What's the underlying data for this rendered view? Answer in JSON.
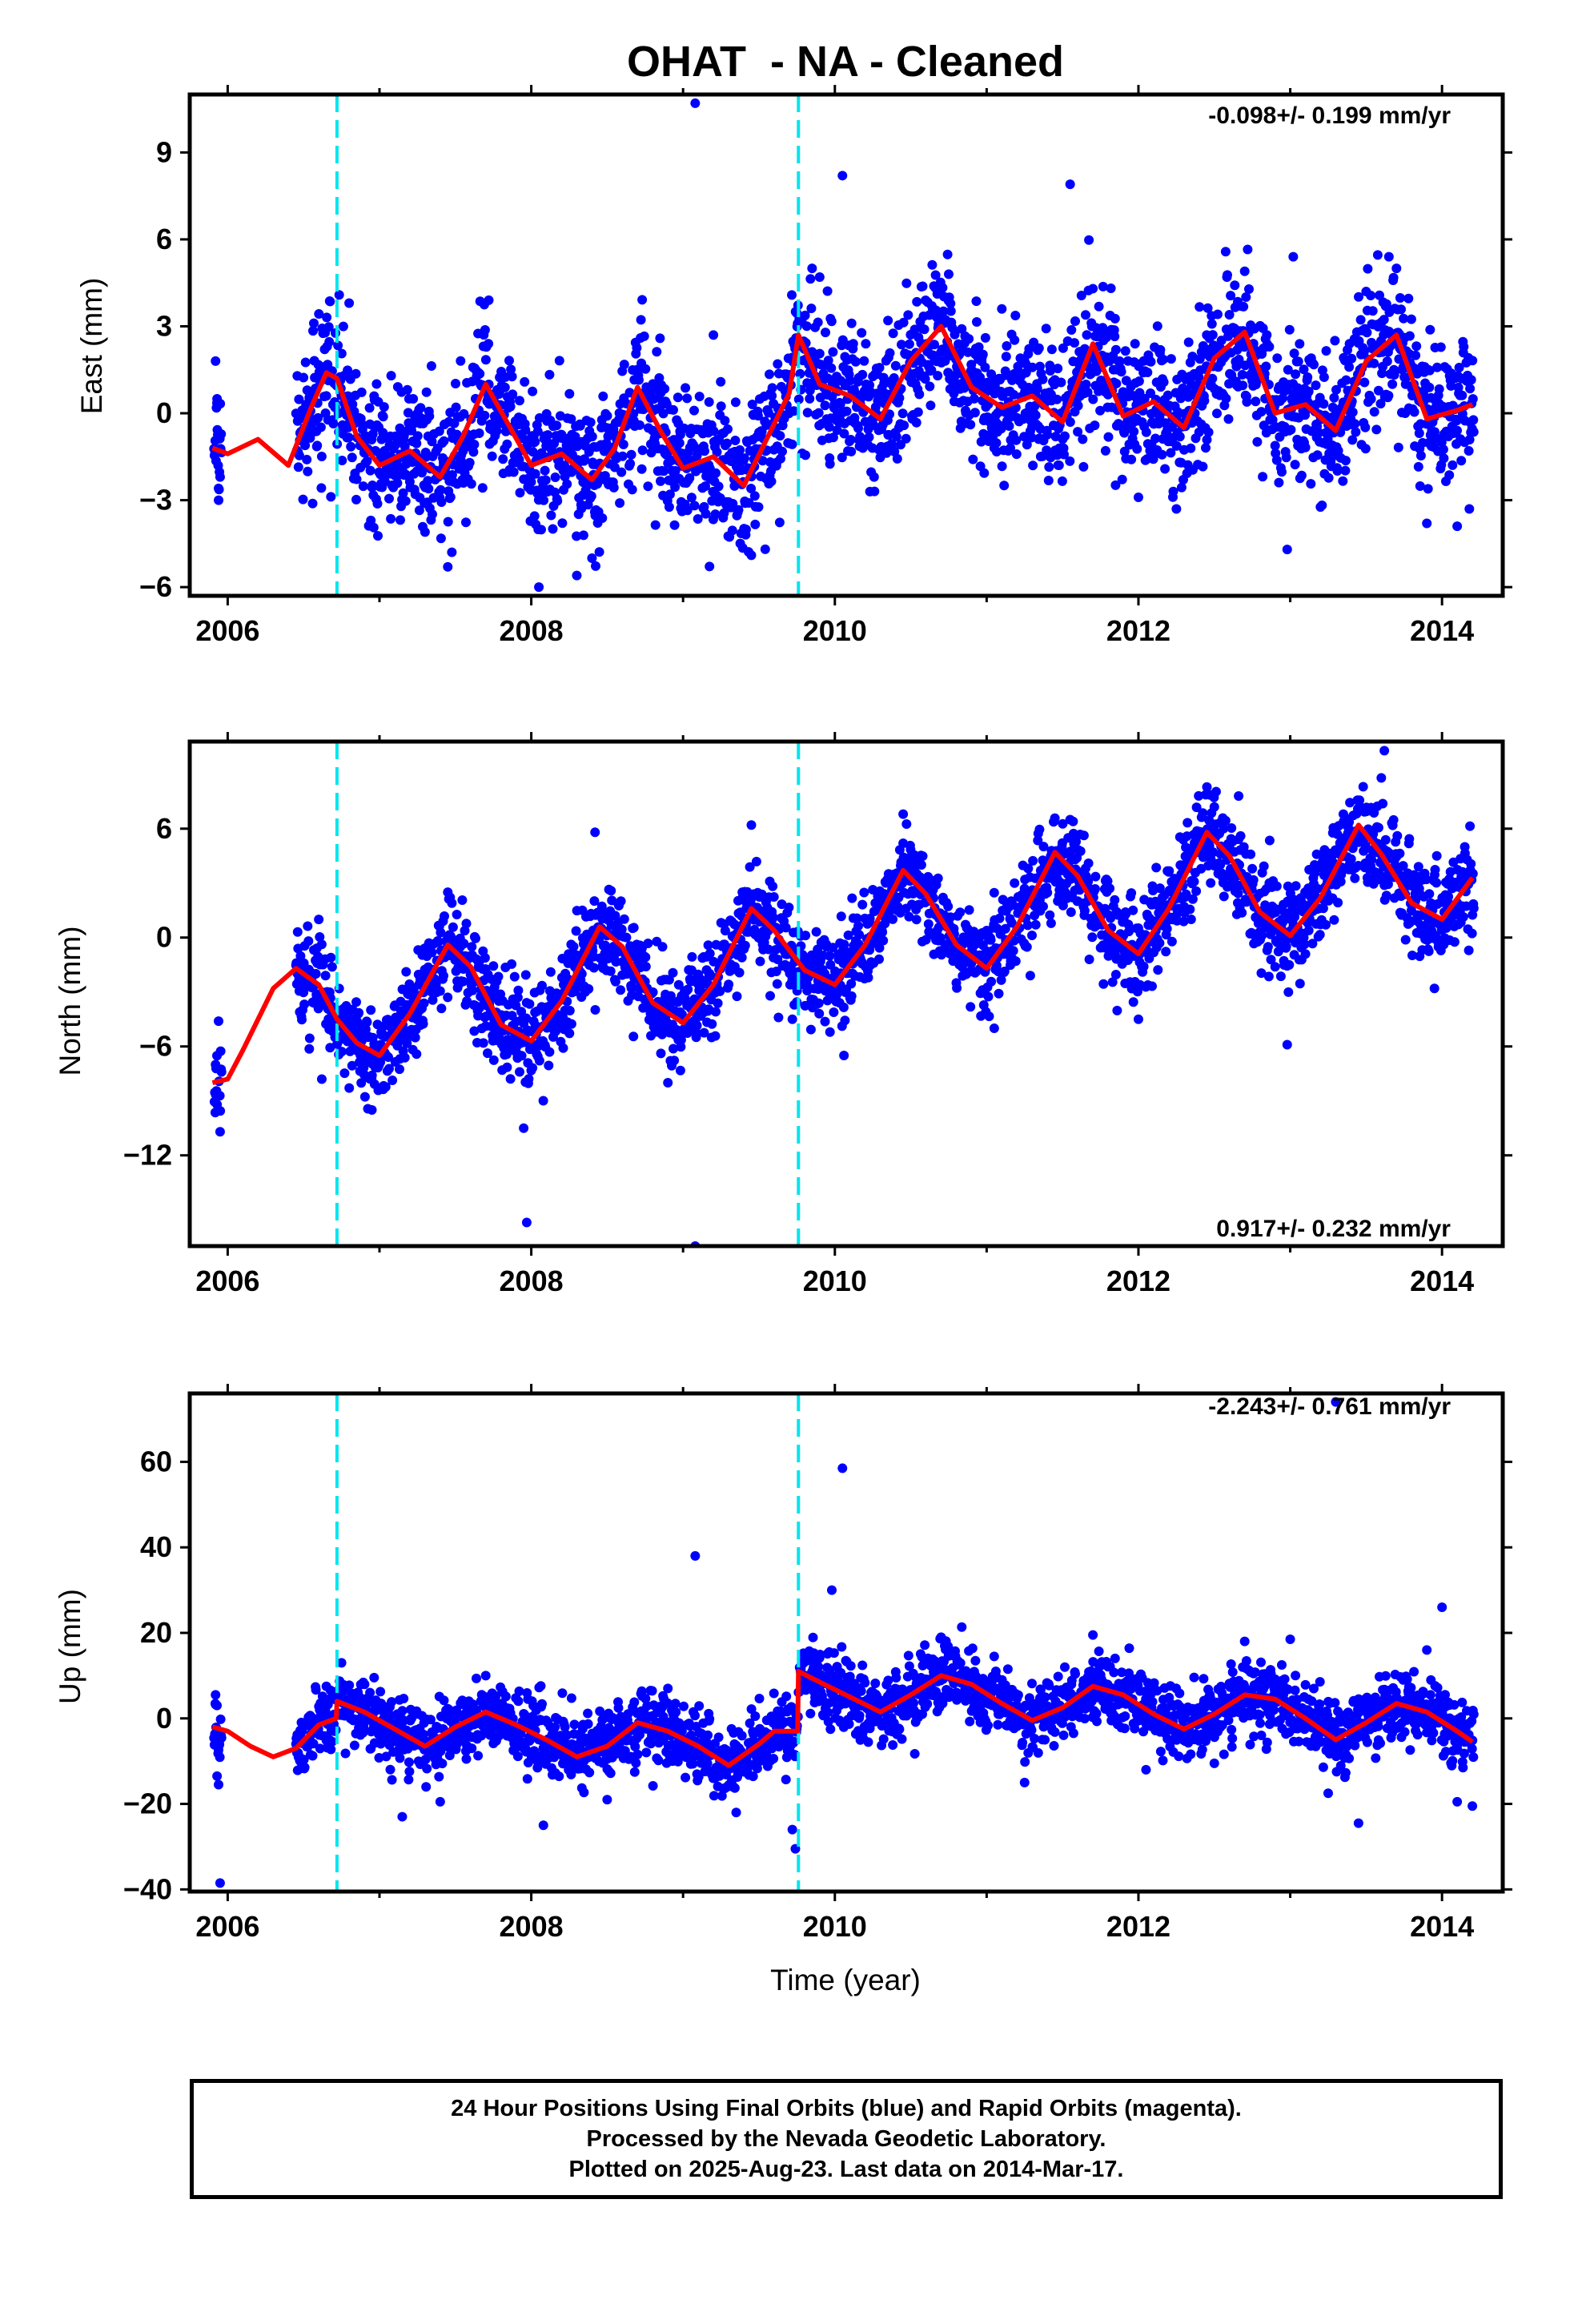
{
  "chart_data": {
    "title": "OHAT  - NA - Cleaned",
    "xlabel": "Time (year)",
    "type": "scatter",
    "xlim": [
      2005.75,
      2014.4
    ],
    "x_ticks": [
      "2006",
      "2008",
      "2010",
      "2012",
      "2014"
    ],
    "equipment_changes": [
      2006.72,
      2009.76
    ],
    "colors": {
      "points": "#0000ff",
      "model": "#ff0000",
      "equipment_changes": "#00e5ee"
    },
    "panels": [
      {
        "component": "east",
        "ylabel": "East (mm)",
        "ylim": [
          -6.3,
          11.0
        ],
        "y_ticks": [
          "9",
          "6",
          "3",
          "0",
          "−3",
          "−6"
        ],
        "rate_label": "-0.098+/- 0.199 mm/yr",
        "rate_position": "top-right",
        "model_curve": {
          "x": [
            2005.9,
            2006.0,
            2006.2,
            2006.4,
            2006.55,
            2006.65,
            2006.72,
            2006.85,
            2007.0,
            2007.2,
            2007.4,
            2007.55,
            2007.7,
            2007.85,
            2008.0,
            2008.2,
            2008.4,
            2008.55,
            2008.7,
            2008.85,
            2009.0,
            2009.2,
            2009.4,
            2009.55,
            2009.7,
            2009.76,
            2009.9,
            2010.1,
            2010.3,
            2010.5,
            2010.7,
            2010.9,
            2011.1,
            2011.3,
            2011.5,
            2011.7,
            2011.9,
            2012.1,
            2012.3,
            2012.5,
            2012.7,
            2012.9,
            2013.1,
            2013.3,
            2013.5,
            2013.7,
            2013.9,
            2014.1,
            2014.2
          ],
          "y": [
            -1.2,
            -1.4,
            -0.9,
            -1.8,
            0.2,
            1.4,
            1.2,
            -0.8,
            -1.8,
            -1.3,
            -2.2,
            -0.8,
            1.0,
            -0.4,
            -1.8,
            -1.4,
            -2.3,
            -1.2,
            0.9,
            -0.6,
            -1.9,
            -1.5,
            -2.5,
            -0.9,
            0.7,
            2.7,
            1.0,
            0.6,
            -0.2,
            1.8,
            3.0,
            0.9,
            0.2,
            0.6,
            -0.3,
            2.4,
            -0.1,
            0.4,
            -0.5,
            1.9,
            2.8,
            0.0,
            0.3,
            -0.6,
            1.8,
            2.7,
            -0.2,
            0.1,
            0.3
          ]
        },
        "points": [
          [
            2005.92,
            1.8
          ],
          [
            2005.94,
            -3.0
          ],
          [
            2005.95,
            -2.2
          ],
          [
            2005.93,
            0.5
          ],
          [
            2006.62,
            1.6
          ],
          [
            2006.8,
            3.8
          ],
          [
            2007.3,
            -4.1
          ],
          [
            2007.45,
            -5.3
          ],
          [
            2007.72,
            3.9
          ],
          [
            2008.05,
            -6.0
          ],
          [
            2008.3,
            -5.6
          ],
          [
            2008.4,
            -5.0
          ],
          [
            2008.72,
            2.6
          ],
          [
            2009.08,
            10.7
          ],
          [
            2009.2,
            2.7
          ],
          [
            2009.45,
            -4.9
          ],
          [
            2009.85,
            5.0
          ],
          [
            2009.9,
            4.7
          ],
          [
            2010.05,
            8.2
          ],
          [
            2010.35,
            3.2
          ],
          [
            2010.75,
            4.8
          ],
          [
            2011.1,
            3.6
          ],
          [
            2011.55,
            7.9
          ],
          [
            2011.7,
            4.3
          ],
          [
            2012.0,
            -2.9
          ],
          [
            2012.25,
            -3.3
          ],
          [
            2012.45,
            2.7
          ],
          [
            2012.7,
            4.9
          ],
          [
            2012.98,
            -4.7
          ],
          [
            2013.02,
            5.4
          ],
          [
            2013.5,
            4.2
          ],
          [
            2013.65,
            5.4
          ],
          [
            2013.7,
            5.0
          ],
          [
            2013.9,
            -3.8
          ],
          [
            2014.1,
            -3.9
          ],
          [
            2014.18,
            -3.3
          ]
        ]
      },
      {
        "component": "north",
        "ylabel": "North (mm)",
        "ylim": [
          -17.0,
          10.8
        ],
        "y_ticks": [
          "6",
          "0",
          "−6",
          "−12"
        ],
        "rate_label": "0.917+/- 0.232 mm/yr",
        "rate_position": "bottom-right",
        "model_curve": {
          "x": [
            2005.9,
            2006.0,
            2006.1,
            2006.3,
            2006.45,
            2006.6,
            2006.72,
            2006.85,
            2007.0,
            2007.2,
            2007.45,
            2007.6,
            2007.8,
            2008.0,
            2008.2,
            2008.45,
            2008.6,
            2008.8,
            2009.0,
            2009.2,
            2009.45,
            2009.6,
            2009.8,
            2010.0,
            2010.2,
            2010.45,
            2010.6,
            2010.8,
            2011.0,
            2011.2,
            2011.45,
            2011.6,
            2011.8,
            2012.0,
            2012.2,
            2012.45,
            2012.6,
            2012.8,
            2013.0,
            2013.2,
            2013.45,
            2013.6,
            2013.8,
            2014.0,
            2014.2
          ],
          "y": [
            -8.0,
            -7.8,
            -6.2,
            -2.8,
            -1.7,
            -2.6,
            -4.5,
            -5.8,
            -6.5,
            -4.2,
            -0.4,
            -1.6,
            -4.8,
            -5.7,
            -3.5,
            0.6,
            -0.5,
            -3.6,
            -4.7,
            -2.6,
            1.6,
            0.4,
            -1.8,
            -2.6,
            -0.4,
            3.7,
            2.4,
            -0.4,
            -1.7,
            0.6,
            4.7,
            3.4,
            0.4,
            -0.9,
            1.6,
            5.8,
            4.5,
            1.4,
            0.1,
            2.2,
            6.2,
            4.6,
            1.9,
            1.0,
            3.3
          ]
        },
        "points": [
          [
            2005.92,
            -7.0
          ],
          [
            2005.93,
            -9.2
          ],
          [
            2005.95,
            -10.7
          ],
          [
            2006.6,
            1.0
          ],
          [
            2006.62,
            -7.8
          ],
          [
            2006.95,
            -9.5
          ],
          [
            2007.45,
            2.5
          ],
          [
            2007.95,
            -10.5
          ],
          [
            2007.97,
            -15.7
          ],
          [
            2008.42,
            5.8
          ],
          [
            2008.9,
            -8.0
          ],
          [
            2009.08,
            -17.0
          ],
          [
            2009.45,
            6.2
          ],
          [
            2009.72,
            -4.5
          ],
          [
            2010.06,
            -6.5
          ],
          [
            2010.45,
            6.8
          ],
          [
            2011.05,
            -5.0
          ],
          [
            2011.55,
            6.5
          ],
          [
            2012.0,
            -4.5
          ],
          [
            2012.5,
            7.2
          ],
          [
            2012.66,
            7.8
          ],
          [
            2012.98,
            -5.9
          ],
          [
            2013.35,
            6.8
          ],
          [
            2013.62,
            10.3
          ],
          [
            2013.6,
            8.8
          ],
          [
            2013.95,
            -2.8
          ],
          [
            2014.15,
            5.0
          ]
        ]
      },
      {
        "component": "up",
        "ylabel": "Up (mm)",
        "ylim": [
          -40.5,
          76.0
        ],
        "y_ticks": [
          "60",
          "40",
          "20",
          "0",
          "−20",
          "−40"
        ],
        "rate_label": "-2.243+/- 0.761 mm/yr",
        "rate_position": "top-right",
        "model_curve": {
          "x": [
            2005.9,
            2006.0,
            2006.15,
            2006.3,
            2006.45,
            2006.6,
            2006.715,
            2006.72,
            2006.9,
            2007.1,
            2007.3,
            2007.5,
            2007.7,
            2007.9,
            2008.1,
            2008.3,
            2008.5,
            2008.7,
            2008.9,
            2009.1,
            2009.3,
            2009.5,
            2009.6,
            2009.755,
            2009.76,
            2009.9,
            2010.1,
            2010.3,
            2010.5,
            2010.7,
            2010.9,
            2011.1,
            2011.3,
            2011.5,
            2011.7,
            2011.9,
            2012.1,
            2012.3,
            2012.5,
            2012.7,
            2012.9,
            2013.1,
            2013.3,
            2013.5,
            2013.7,
            2013.9,
            2014.1,
            2014.2
          ],
          "y": [
            -2.0,
            -3.0,
            -6.5,
            -9.0,
            -7.0,
            -1.5,
            0.0,
            4.0,
            1.5,
            -2.5,
            -6.5,
            -2.0,
            1.5,
            -1.5,
            -5.0,
            -9.0,
            -6.5,
            -1.0,
            -3.0,
            -6.5,
            -11.0,
            -6.0,
            -3.0,
            -3.0,
            11.0,
            8.5,
            5.0,
            1.5,
            5.5,
            10.0,
            8.0,
            3.5,
            -0.5,
            2.5,
            7.5,
            5.5,
            1.0,
            -2.5,
            1.0,
            5.5,
            4.5,
            0.0,
            -5.0,
            -1.0,
            3.5,
            1.5,
            -3.0,
            -5.5
          ]
        },
        "points": [
          [
            2005.92,
            5.5
          ],
          [
            2005.93,
            -13.5
          ],
          [
            2005.94,
            -15.5
          ],
          [
            2005.95,
            -38.5
          ],
          [
            2006.65,
            7.5
          ],
          [
            2006.75,
            13.0
          ],
          [
            2007.15,
            -23.0
          ],
          [
            2007.4,
            -19.5
          ],
          [
            2007.7,
            10.0
          ],
          [
            2008.08,
            -25.0
          ],
          [
            2008.5,
            -19.0
          ],
          [
            2008.9,
            7.0
          ],
          [
            2009.08,
            38.0
          ],
          [
            2009.35,
            -22.0
          ],
          [
            2009.72,
            -26.0
          ],
          [
            2009.74,
            -30.5
          ],
          [
            2009.98,
            30.0
          ],
          [
            2010.05,
            58.5
          ],
          [
            2010.7,
            19.0
          ],
          [
            2011.25,
            -15.0
          ],
          [
            2011.7,
            19.5
          ],
          [
            2012.05,
            -12.0
          ],
          [
            2012.5,
            -10.5
          ],
          [
            2012.7,
            18.0
          ],
          [
            2013.0,
            18.5
          ],
          [
            2013.25,
            -17.5
          ],
          [
            2013.3,
            74.0
          ],
          [
            2013.45,
            -24.5
          ],
          [
            2013.9,
            16.0
          ],
          [
            2014.0,
            26.0
          ],
          [
            2014.1,
            -19.5
          ],
          [
            2014.2,
            -20.5
          ]
        ]
      }
    ]
  },
  "footer": {
    "line1": "24 Hour Positions Using Final Orbits (blue) and Rapid Orbits (magenta).",
    "line2": "Processed by the Nevada Geodetic Laboratory.",
    "line3": "Plotted on 2025-Aug-23. Last data on 2014-Mar-17."
  }
}
